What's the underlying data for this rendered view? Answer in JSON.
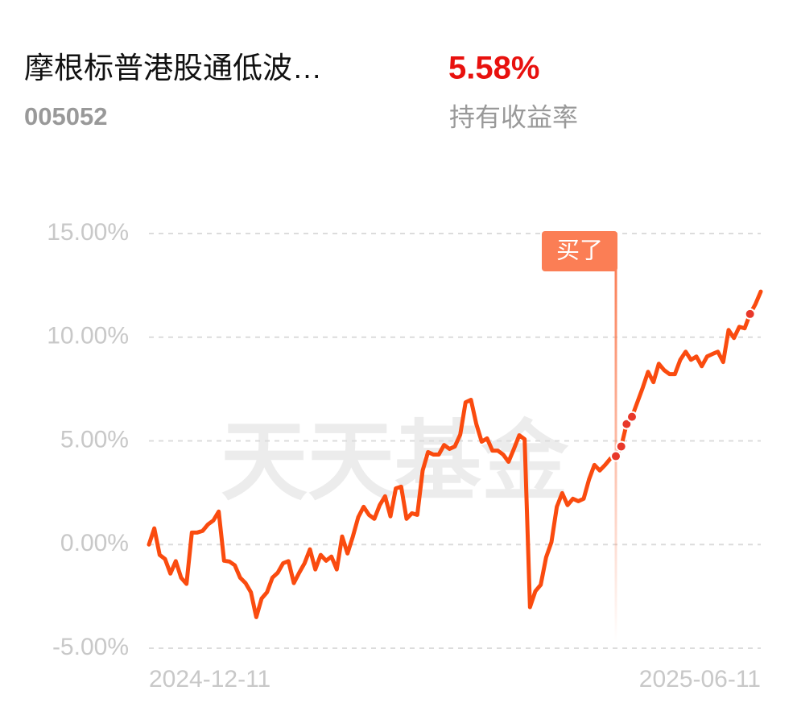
{
  "fund": {
    "name": "摩根标普港股通低波…",
    "code": "005052",
    "return": {
      "value": 5.58,
      "label": "5.58%"
    },
    "return_caption": "持有收益率"
  },
  "chart_data": {
    "type": "line",
    "watermark": "天天基金",
    "categories": [
      "2024-12-11",
      null,
      null,
      null,
      null,
      null,
      null,
      null,
      null,
      null,
      null,
      null,
      null,
      null,
      null,
      null,
      null,
      null,
      null,
      null,
      null,
      null,
      null,
      null,
      null,
      null,
      null,
      null,
      null,
      null,
      null,
      null,
      null,
      null,
      null,
      null,
      null,
      null,
      null,
      null,
      null,
      null,
      null,
      null,
      null,
      null,
      null,
      null,
      null,
      null,
      null,
      null,
      null,
      null,
      null,
      null,
      null,
      null,
      null,
      null,
      null,
      null,
      null,
      null,
      null,
      null,
      null,
      null,
      null,
      null,
      null,
      null,
      null,
      null,
      null,
      null,
      null,
      null,
      null,
      null,
      null,
      null,
      null,
      null,
      null,
      null,
      null,
      null,
      null,
      null,
      null,
      null,
      null,
      null,
      null,
      null,
      null,
      null,
      null,
      null,
      null,
      null,
      null,
      null,
      null,
      null,
      null,
      null,
      null,
      null,
      null,
      null,
      null,
      null,
      "2025-06-11"
    ],
    "series": [
      {
        "color": "#fa4b0f",
        "values": [
          0,
          0.78,
          -0.5,
          -0.7,
          -1.4,
          -0.8,
          -1.6,
          -1.9,
          0.58,
          0.58,
          0.66,
          0.97,
          1.16,
          1.59,
          -0.78,
          -0.82,
          -1.0,
          -1.6,
          -1.86,
          -2.3,
          -3.5,
          -2.6,
          -2.3,
          -1.6,
          -1.36,
          -0.9,
          -0.8,
          -1.86,
          -1.36,
          -0.9,
          -0.23,
          -1.2,
          -0.5,
          -0.78,
          -0.58,
          -1.2,
          0.39,
          -0.43,
          0.39,
          1.32,
          1.82,
          1.43,
          1.24,
          1.9,
          2.33,
          1.36,
          2.71,
          2.79,
          1.24,
          1.51,
          1.43,
          3.57,
          4.46,
          4.34,
          4.34,
          4.8,
          4.61,
          4.73,
          5.3,
          6.86,
          6.98,
          5.81,
          4.96,
          5.12,
          4.53,
          4.53,
          4.34,
          3.99,
          4.61,
          5.27,
          5.08,
          -3.02,
          -2.25,
          -1.94,
          -0.62,
          0.12,
          1.82,
          2.48,
          1.9,
          2.21,
          2.09,
          2.21,
          3.14,
          3.84,
          3.57,
          3.84,
          4.15,
          4.26,
          4.73,
          5.81,
          6.16,
          6.86,
          7.56,
          8.33,
          7.83,
          8.72,
          8.41,
          8.22,
          8.22,
          8.91,
          9.3,
          8.91,
          9.07,
          8.6,
          9.07,
          9.19,
          9.3,
          8.8,
          10.35,
          9.96,
          10.5,
          10.43,
          11.12,
          11.59,
          12.2
        ]
      }
    ],
    "markers": {
      "color": "#e8382a",
      "indices": [
        87,
        88,
        89,
        90,
        112
      ]
    },
    "annotation": {
      "text": "买了",
      "index": 87,
      "color": "#fb7e55"
    },
    "ylim": [
      -5,
      15
    ],
    "yticks": [
      {
        "value": 15,
        "label": "15.00%"
      },
      {
        "value": 10,
        "label": "10.00%"
      },
      {
        "value": 5,
        "label": "5.00%"
      },
      {
        "value": 0,
        "label": "0.00%"
      },
      {
        "value": -5,
        "label": "-5.00%"
      }
    ],
    "grid": true
  }
}
